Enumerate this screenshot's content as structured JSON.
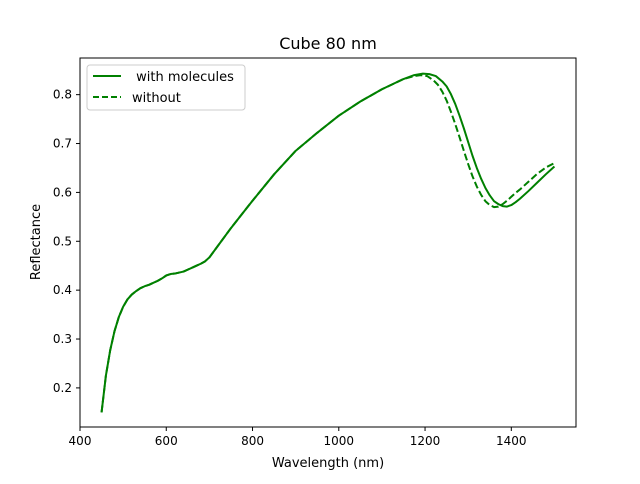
{
  "chart_data": {
    "type": "line",
    "title": "Cube 80 nm",
    "xlabel": "Wavelength (nm)",
    "ylabel": "Reflectance",
    "xlim": [
      400,
      1550
    ],
    "ylim": [
      0.12,
      0.875
    ],
    "xticks": [
      400,
      600,
      800,
      1000,
      1200,
      1400
    ],
    "yticks": [
      0.2,
      0.3,
      0.4,
      0.5,
      0.6,
      0.7,
      0.8
    ],
    "xtick_labels": [
      "400",
      "600",
      "800",
      "1000",
      "1200",
      "1400"
    ],
    "ytick_labels": [
      "0.2",
      "0.3",
      "0.4",
      "0.5",
      "0.6",
      "0.7",
      "0.8"
    ],
    "grid": false,
    "legend_position": "upper-left",
    "series": [
      {
        "name": " with molecules",
        "style": "solid",
        "color": "#008000",
        "x": [
          450,
          460,
          470,
          480,
          490,
          500,
          510,
          520,
          530,
          540,
          550,
          560,
          570,
          580,
          590,
          600,
          610,
          620,
          630,
          640,
          650,
          660,
          670,
          680,
          690,
          700,
          725,
          750,
          775,
          800,
          850,
          900,
          950,
          1000,
          1050,
          1100,
          1150,
          1175,
          1195,
          1210,
          1225,
          1240,
          1250,
          1260,
          1270,
          1280,
          1290,
          1300,
          1310,
          1320,
          1330,
          1340,
          1350,
          1360,
          1370,
          1380,
          1390,
          1400,
          1410,
          1420,
          1440,
          1460,
          1480,
          1500
        ],
        "y": [
          0.15,
          0.225,
          0.277,
          0.316,
          0.345,
          0.366,
          0.381,
          0.391,
          0.398,
          0.404,
          0.408,
          0.411,
          0.415,
          0.419,
          0.424,
          0.43,
          0.433,
          0.434,
          0.436,
          0.438,
          0.442,
          0.446,
          0.45,
          0.454,
          0.459,
          0.467,
          0.497,
          0.527,
          0.555,
          0.583,
          0.637,
          0.685,
          0.722,
          0.757,
          0.786,
          0.811,
          0.832,
          0.84,
          0.843,
          0.842,
          0.838,
          0.827,
          0.817,
          0.801,
          0.781,
          0.757,
          0.731,
          0.703,
          0.675,
          0.65,
          0.628,
          0.609,
          0.594,
          0.582,
          0.576,
          0.572,
          0.571,
          0.574,
          0.58,
          0.587,
          0.603,
          0.62,
          0.637,
          0.653
        ]
      },
      {
        "name": "without",
        "style": "dashed",
        "color": "#008000",
        "x": [
          450,
          460,
          470,
          480,
          490,
          500,
          510,
          520,
          530,
          540,
          550,
          560,
          570,
          580,
          590,
          600,
          610,
          620,
          630,
          640,
          650,
          660,
          670,
          680,
          690,
          700,
          725,
          750,
          775,
          800,
          850,
          900,
          950,
          1000,
          1050,
          1100,
          1150,
          1175,
          1190,
          1205,
          1220,
          1230,
          1240,
          1250,
          1260,
          1270,
          1280,
          1290,
          1300,
          1310,
          1320,
          1330,
          1340,
          1350,
          1360,
          1370,
          1380,
          1390,
          1400,
          1410,
          1420,
          1440,
          1460,
          1480,
          1500
        ],
        "y": [
          0.15,
          0.225,
          0.277,
          0.316,
          0.345,
          0.366,
          0.381,
          0.391,
          0.398,
          0.404,
          0.408,
          0.411,
          0.415,
          0.419,
          0.424,
          0.43,
          0.433,
          0.434,
          0.436,
          0.438,
          0.442,
          0.446,
          0.45,
          0.454,
          0.459,
          0.467,
          0.497,
          0.527,
          0.555,
          0.583,
          0.637,
          0.685,
          0.722,
          0.757,
          0.786,
          0.811,
          0.832,
          0.838,
          0.84,
          0.838,
          0.829,
          0.82,
          0.806,
          0.788,
          0.765,
          0.74,
          0.713,
          0.685,
          0.658,
          0.633,
          0.612,
          0.595,
          0.582,
          0.574,
          0.57,
          0.571,
          0.576,
          0.583,
          0.591,
          0.599,
          0.606,
          0.622,
          0.638,
          0.651,
          0.66
        ]
      }
    ]
  }
}
